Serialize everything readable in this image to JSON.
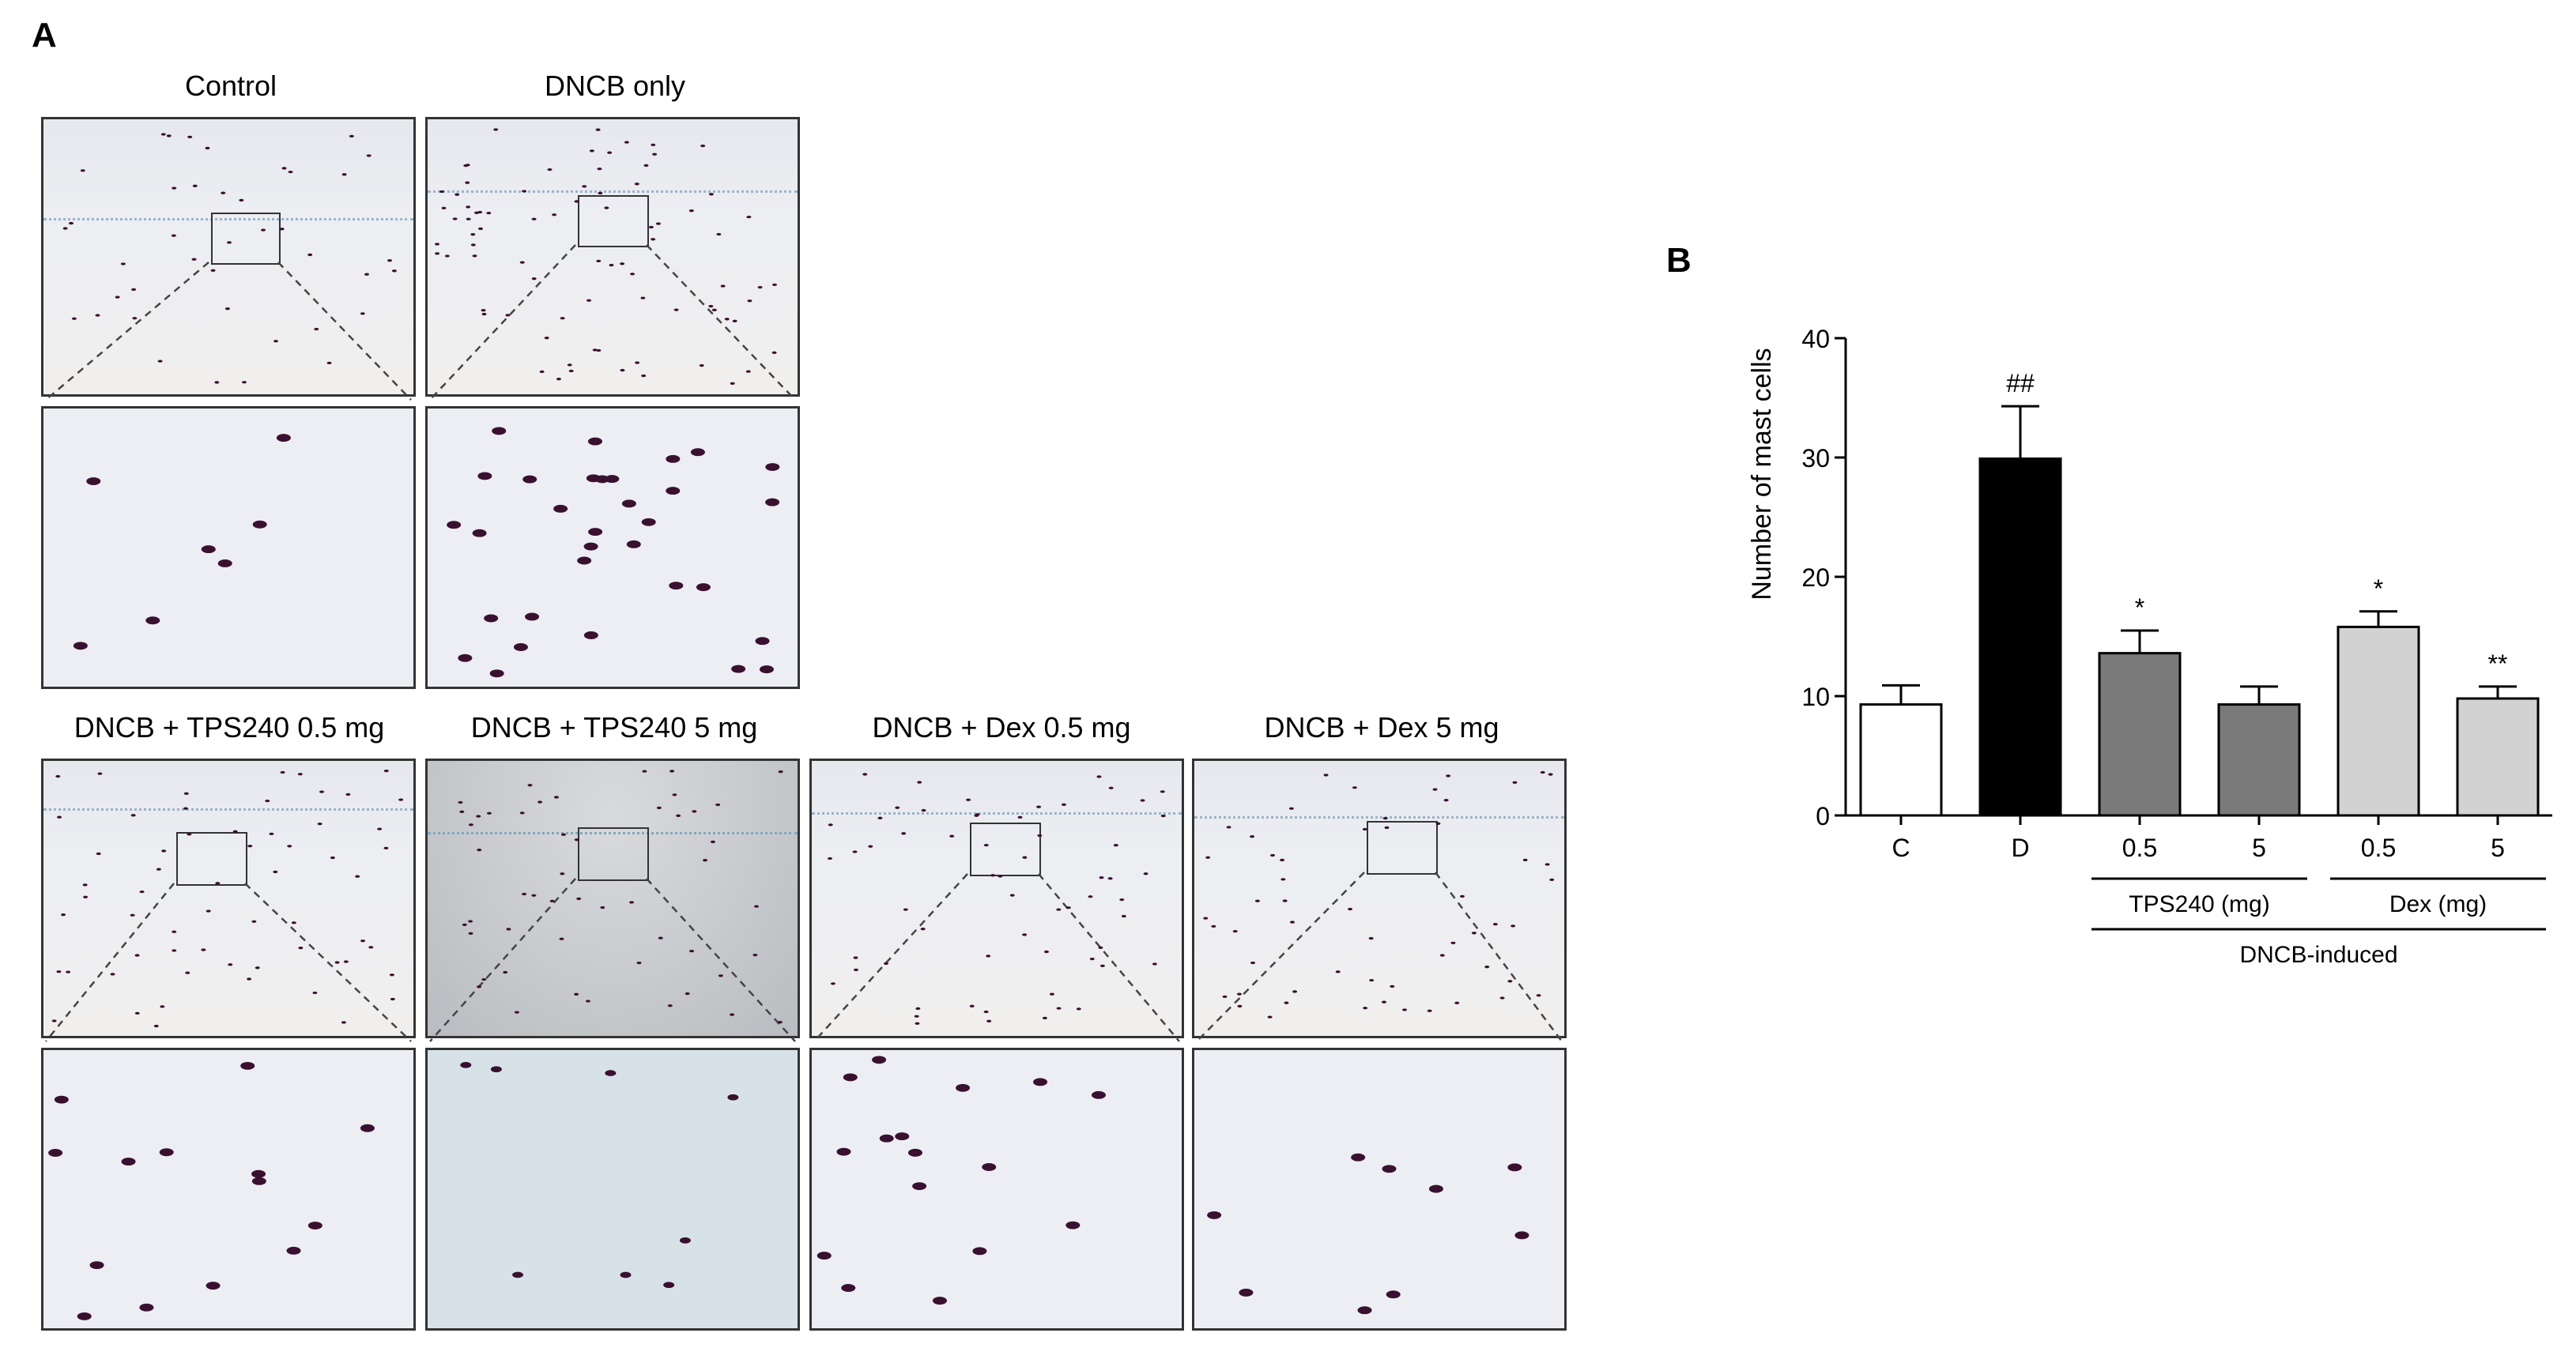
{
  "figure": {
    "panel_a_label": "A",
    "panel_b_label": "B",
    "groups": {
      "control": "Control",
      "dncb_only": "DNCB only",
      "tps_low": "DNCB + TPS240 0.5 mg",
      "tps_high": "DNCB + TPS240 5 mg",
      "dex_low": "DNCB + Dex 0.5 mg",
      "dex_high": "DNCB + Dex 5 mg"
    }
  },
  "colors": {
    "white_bar": "#ffffff",
    "black_bar": "#000000",
    "dark_gray_bar": "#7a7a7a",
    "light_gray_bar": "#d2d2d2",
    "mast_cell": "#3a1030",
    "tissue_blue": "#a9c3d3"
  },
  "chart_data": {
    "type": "bar",
    "ylabel": "Number of mast cells",
    "xlabel": "",
    "ylim": [
      0,
      40
    ],
    "yticks": [
      0,
      10,
      20,
      30,
      40
    ],
    "categories": [
      "C",
      "D",
      "0.5",
      "5",
      "0.5",
      "5"
    ],
    "values": [
      9.3,
      29.9,
      13.6,
      9.3,
      15.8,
      9.8
    ],
    "errors": [
      1.6,
      4.4,
      1.9,
      1.5,
      1.3,
      1.0
    ],
    "bar_colors": [
      "#ffffff",
      "#000000",
      "#7a7a7a",
      "#7a7a7a",
      "#d2d2d2",
      "#d2d2d2"
    ],
    "annotations": [
      "",
      "##",
      "*",
      "",
      "*",
      "**"
    ],
    "group_labels": [
      {
        "label": "TPS240 (mg)",
        "from": 2,
        "to": 3
      },
      {
        "label": "Dex (mg)",
        "from": 4,
        "to": 5
      }
    ],
    "super_group": {
      "label": "DNCB-induced",
      "from": 2,
      "to": 5
    },
    "grid": false
  }
}
